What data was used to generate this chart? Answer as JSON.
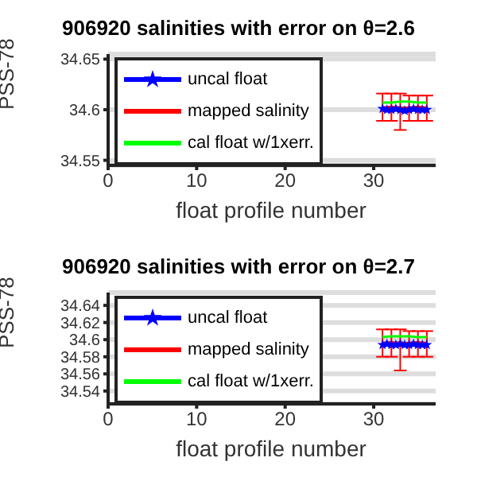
{
  "chart_data": [
    {
      "type": "line",
      "title": "906920 salinities with error on θ=2.6",
      "xlabel": "float profile number",
      "ylabel": "PSS-78",
      "xlim": [
        0,
        37
      ],
      "xticks": [
        0,
        10,
        20,
        30
      ],
      "ylim": [
        34.545,
        34.655
      ],
      "yticks": [
        34.55,
        34.6,
        34.65
      ],
      "grid": "y",
      "legend": "top left",
      "series": [
        {
          "name": "uncal float",
          "color": "#0000ff",
          "marker": "star",
          "x": [
            31,
            31.5,
            32,
            32.5,
            33,
            33.5,
            34,
            34.5,
            35,
            35.5,
            36
          ],
          "values": [
            34.601,
            34.6,
            34.6,
            34.601,
            34.6,
            34.599,
            34.6,
            34.601,
            34.6,
            34.6,
            34.6
          ]
        },
        {
          "name": "mapped salinity",
          "color": "#ff0000",
          "marker": "none",
          "x": [
            31,
            32,
            33,
            34,
            35,
            36
          ],
          "values": [
            34.602,
            34.603,
            34.602,
            34.602,
            34.603,
            34.602
          ],
          "errors": [
            [
              34.589,
              34.616
            ],
            [
              34.589,
              34.616
            ],
            [
              34.58,
              34.616
            ],
            [
              34.589,
              34.614
            ],
            [
              34.589,
              34.614
            ],
            [
              34.589,
              34.614
            ]
          ]
        },
        {
          "name": "cal float w/1xerr.",
          "color": "#00ff00",
          "marker": "none",
          "x": [
            31,
            32,
            33,
            34,
            35,
            36
          ],
          "values": [
            34.607,
            34.607,
            34.608,
            34.608,
            34.607,
            34.607
          ]
        }
      ]
    },
    {
      "type": "line",
      "title": "906920 salinities with error on θ=2.7",
      "xlabel": "float profile number",
      "ylabel": "PSS-78",
      "xlim": [
        0,
        37
      ],
      "xticks": [
        0,
        10,
        20,
        30
      ],
      "ylim": [
        34.525,
        34.655
      ],
      "yticks": [
        34.54,
        34.56,
        34.58,
        34.6,
        34.62,
        34.64
      ],
      "grid": "y",
      "legend": "top left",
      "series": [
        {
          "name": "uncal float",
          "color": "#0000ff",
          "marker": "star",
          "x": [
            31,
            31.5,
            32,
            32.5,
            33,
            33.5,
            34,
            34.5,
            35,
            35.5,
            36
          ],
          "values": [
            34.594,
            34.595,
            34.594,
            34.594,
            34.595,
            34.594,
            34.594,
            34.595,
            34.594,
            34.594,
            34.594
          ]
        },
        {
          "name": "mapped salinity",
          "color": "#ff0000",
          "marker": "none",
          "x": [
            31,
            32,
            33,
            34,
            35,
            36
          ],
          "values": [
            34.596,
            34.597,
            34.596,
            34.596,
            34.597,
            34.596
          ],
          "errors": [
            [
              34.58,
              34.612
            ],
            [
              34.58,
              34.612
            ],
            [
              34.564,
              34.612
            ],
            [
              34.58,
              34.61
            ],
            [
              34.58,
              34.61
            ],
            [
              34.58,
              34.61
            ]
          ]
        },
        {
          "name": "cal float w/1xerr.",
          "color": "#00ff00",
          "marker": "none",
          "x": [
            31,
            32,
            33,
            34,
            35,
            36
          ],
          "values": [
            34.603,
            34.604,
            34.604,
            34.604,
            34.603,
            34.603
          ]
        }
      ]
    }
  ]
}
